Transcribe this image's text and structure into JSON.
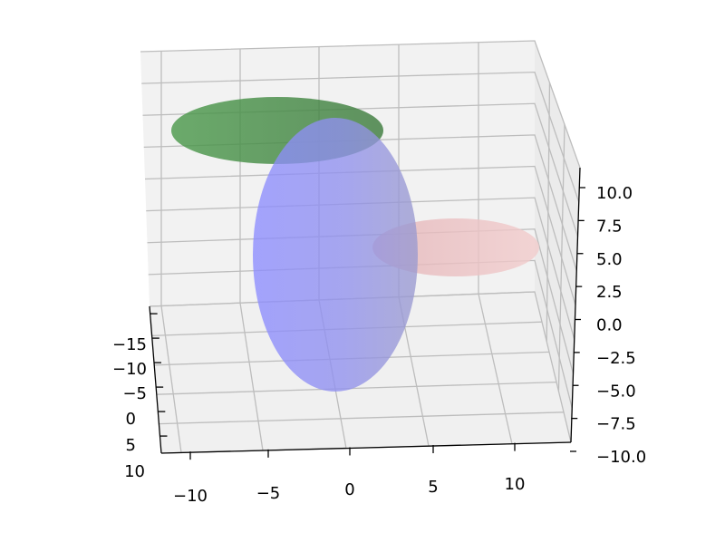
{
  "chart_data": {
    "type": "3d-surface",
    "title": "",
    "axes": {
      "x": {
        "label": "",
        "range": [
          -12,
          13
        ],
        "ticks": [
          "−10",
          "−5",
          "0",
          "5",
          "10"
        ]
      },
      "y": {
        "label": "",
        "range": [
          -18,
          11
        ],
        "ticks": [
          "−15",
          "−10",
          "−5",
          "0",
          "5",
          "10"
        ]
      },
      "z": {
        "label": "",
        "range": [
          -10,
          10
        ],
        "ticks": [
          "−10.0",
          "−7.5",
          "−5.0",
          "−2.5",
          "0.0",
          "2.5",
          "5.0",
          "7.5",
          "10.0"
        ]
      }
    },
    "grid": true,
    "series": [
      {
        "shape": "ellipsoid",
        "color": "#0000ff",
        "alpha": 0.35
      },
      {
        "shape": "ellipsoid",
        "color": "#008000",
        "alpha": 0.6
      },
      {
        "shape": "ellipsoid",
        "color": "#ff9999",
        "alpha": 0.4
      }
    ]
  }
}
